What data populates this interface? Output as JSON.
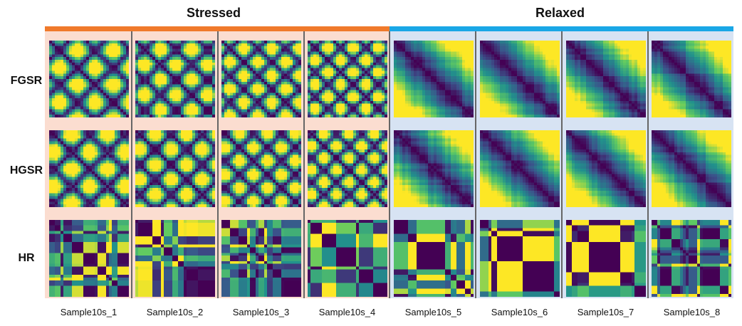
{
  "groups": [
    {
      "name": "Stressed",
      "color": "#f07a2b",
      "bg": "#fbddd0"
    },
    {
      "name": "Relaxed",
      "color": "#1aa7e6",
      "bg": "#d7e3f3"
    }
  ],
  "rows": [
    "FGSR",
    "HGSR",
    "HR"
  ],
  "samples": [
    {
      "label": "Sample10s_1",
      "group": "Stressed"
    },
    {
      "label": "Sample10s_2",
      "group": "Stressed"
    },
    {
      "label": "Sample10s_3",
      "group": "Stressed"
    },
    {
      "label": "Sample10s_4",
      "group": "Stressed"
    },
    {
      "label": "Sample10s_5",
      "group": "Relaxed"
    },
    {
      "label": "Sample10s_6",
      "group": "Relaxed"
    },
    {
      "label": "Sample10s_7",
      "group": "Relaxed"
    },
    {
      "label": "Sample10s_8",
      "group": "Relaxed"
    }
  ],
  "colormap": "viridis",
  "palette": [
    "#440154",
    "#3b528b",
    "#21918c",
    "#5ec962",
    "#fde725"
  ]
}
